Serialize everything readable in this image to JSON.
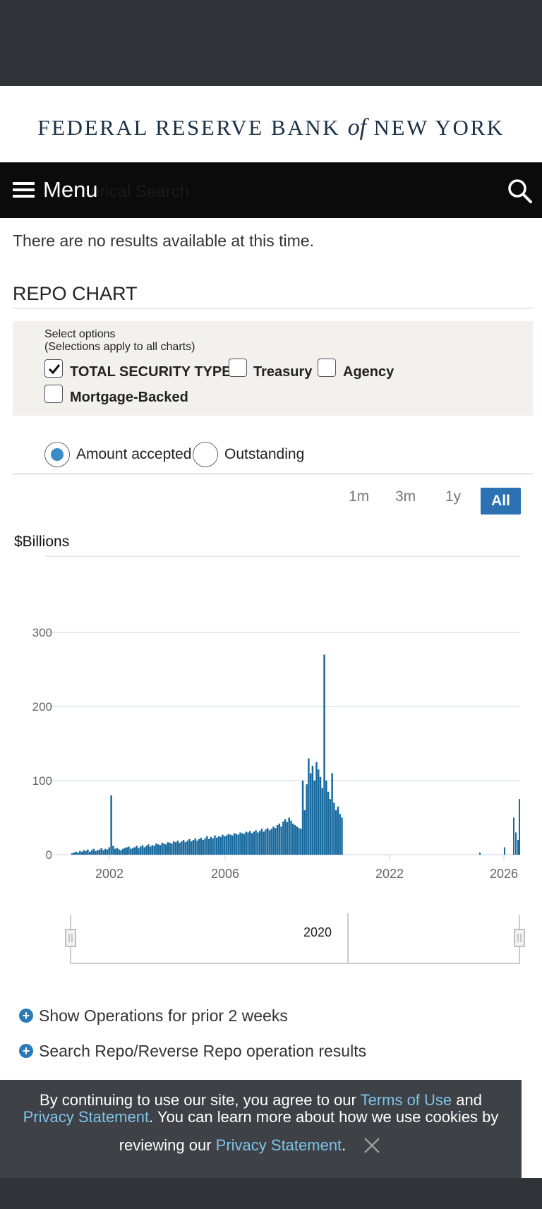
{
  "header": {
    "logo": {
      "part1": "FEDERAL RESERVE BANK",
      "part2": "of",
      "part3": "NEW YORK"
    }
  },
  "nav": {
    "menu_label": "Menu",
    "hidden_text": "orical Search"
  },
  "main": {
    "no_results": "There are no results available at this time.",
    "section_title": "REPO CHART"
  },
  "options": {
    "title": "Select options",
    "subtitle": "(Selections apply to all charts)",
    "checkboxes": [
      {
        "label": "TOTAL SECURITY TYPES",
        "checked": true
      },
      {
        "label": "Treasury",
        "checked": false
      },
      {
        "label": "Agency",
        "checked": false
      },
      {
        "label": "Mortgage-Backed",
        "checked": false
      }
    ]
  },
  "view_mode": {
    "options": [
      {
        "label": "Amount accepted",
        "selected": true
      },
      {
        "label": "Outstanding",
        "selected": false
      }
    ]
  },
  "range_buttons": {
    "items": [
      "1m",
      "3m",
      "1y",
      "All"
    ],
    "active": "All"
  },
  "chart_data": {
    "type": "bar",
    "ylabel": "$Billions",
    "yticks": [
      0,
      100,
      200,
      300
    ],
    "ylim": [
      0,
      300
    ],
    "xticks": [
      "2002",
      "2006",
      "2022",
      "2026"
    ],
    "grid": true,
    "accent_color": "#17699e",
    "navigator_label": "2020",
    "series": [
      {
        "name": "",
        "values": [
          2,
          3,
          4,
          3,
          5,
          4,
          6,
          5,
          7,
          4,
          6,
          8,
          5,
          6,
          7,
          9,
          6,
          8,
          7,
          10,
          80,
          12,
          8,
          9,
          7,
          6,
          8,
          9,
          10,
          11,
          8,
          9,
          10,
          12,
          9,
          11,
          13,
          10,
          12,
          14,
          11,
          13,
          12,
          15,
          14,
          13,
          16,
          15,
          14,
          17,
          16,
          15,
          18,
          17,
          19,
          16,
          18,
          20,
          17,
          19,
          21,
          18,
          20,
          22,
          19,
          21,
          23,
          20,
          22,
          25,
          21,
          24,
          22,
          26,
          23,
          25,
          24,
          27,
          25,
          26,
          28,
          27,
          26,
          29,
          28,
          27,
          30,
          29,
          28,
          31,
          30,
          32,
          29,
          31,
          33,
          30,
          32,
          35,
          31,
          34,
          36,
          33,
          35,
          38,
          36,
          40,
          42,
          38,
          45,
          48,
          44,
          50,
          46,
          42,
          40,
          38,
          36,
          35,
          100,
          60,
          95,
          130,
          110,
          120,
          100,
          125,
          115,
          105,
          90,
          270,
          100,
          85,
          75,
          110,
          70,
          60,
          65,
          55,
          50
        ]
      }
    ]
  },
  "expanders": [
    {
      "label": "Show Operations for prior 2 weeks"
    },
    {
      "label": "Search Repo/Reverse Repo operation results"
    }
  ],
  "cookie_banner": {
    "text1": "By continuing to use our site, you agree to our ",
    "link1": "Terms of Use",
    "text2": " and",
    "link2": "Privacy Statement",
    "text3": ". You can learn more about how we use cookies by",
    "text4": "reviewing our ",
    "link3": "Privacy Statement",
    "text5": "."
  }
}
